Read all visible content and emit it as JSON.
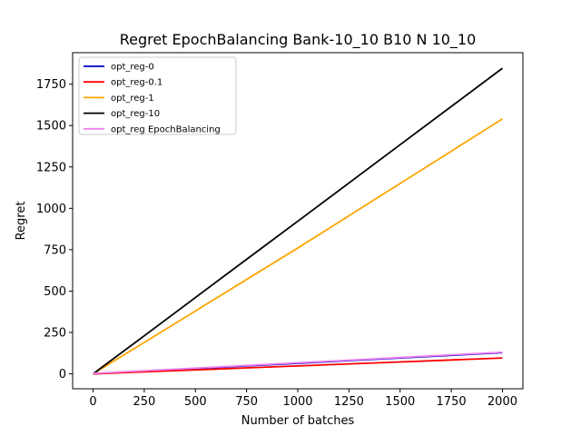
{
  "chart_data": {
    "type": "line",
    "title": "Regret EpochBalancing Bank-10_10 B10 N 10_10",
    "xlabel": "Number of batches",
    "ylabel": "Regret",
    "xlim": [
      -100,
      2100
    ],
    "ylim": [
      -90,
      1940
    ],
    "x_ticks": [
      0,
      250,
      500,
      750,
      1000,
      1250,
      1500,
      1750,
      2000
    ],
    "x_tick_labels": [
      "0",
      "250",
      "500",
      "750",
      "1000",
      "1250",
      "1500",
      "1750",
      "2000"
    ],
    "y_ticks": [
      0,
      250,
      500,
      750,
      1000,
      1250,
      1500,
      1750
    ],
    "y_tick_labels": [
      "0",
      "250",
      "500",
      "750",
      "1000",
      "1250",
      "1500",
      "1750"
    ],
    "grid": false,
    "legend_position": "upper-left",
    "x": [
      0,
      250,
      500,
      750,
      1000,
      1250,
      1500,
      1750,
      2000
    ],
    "series": [
      {
        "name": "opt_reg-0",
        "color": "#0000cc",
        "values": [
          0,
          16,
          32,
          48,
          64,
          80,
          96,
          112,
          128
        ]
      },
      {
        "name": "opt_reg-0.1",
        "color": "#ff0000",
        "values": [
          0,
          12,
          24,
          36,
          48,
          60,
          72,
          84,
          96
        ]
      },
      {
        "name": "opt_reg-1",
        "color": "#ffa500",
        "values": [
          0,
          190,
          380,
          570,
          760,
          955,
          1150,
          1345,
          1540
        ]
      },
      {
        "name": "opt_reg-10",
        "color": "#000000",
        "values": [
          0,
          230,
          461,
          692,
          922,
          1153,
          1384,
          1615,
          1846
        ]
      },
      {
        "name": "opt_reg EpochBalancing",
        "color": "#ee82ee",
        "values": [
          3,
          19,
          35,
          51,
          67,
          83,
          99,
          115,
          131
        ]
      }
    ]
  }
}
